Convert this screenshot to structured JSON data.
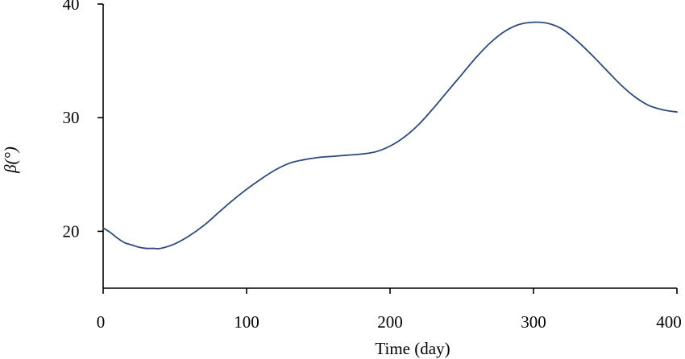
{
  "chart_data": {
    "type": "line",
    "title": "",
    "xlabel": "Time (day)",
    "ylabel": "β(°)",
    "xlim": [
      0,
      400
    ],
    "ylim": [
      15,
      40
    ],
    "xticks": [
      0,
      100,
      200,
      300,
      400
    ],
    "yticks": [
      20,
      30,
      40
    ],
    "grid": false,
    "line_color": "#2b4a7e",
    "series": [
      {
        "x": [
          0,
          5,
          10,
          15,
          20,
          25,
          30,
          35,
          40,
          50,
          60,
          70,
          80,
          90,
          100,
          110,
          120,
          130,
          140,
          150,
          160,
          170,
          180,
          190,
          200,
          210,
          220,
          230,
          240,
          250,
          260,
          270,
          280,
          290,
          300,
          310,
          320,
          330,
          340,
          350,
          360,
          370,
          380,
          390,
          400
        ],
        "y": [
          20.3,
          19.9,
          19.4,
          19.0,
          18.8,
          18.6,
          18.5,
          18.5,
          18.5,
          18.9,
          19.6,
          20.5,
          21.6,
          22.7,
          23.7,
          24.6,
          25.4,
          26.0,
          26.3,
          26.5,
          26.6,
          26.7,
          26.8,
          27.0,
          27.5,
          28.3,
          29.4,
          30.8,
          32.3,
          33.8,
          35.3,
          36.6,
          37.6,
          38.2,
          38.4,
          38.3,
          37.8,
          36.8,
          35.6,
          34.3,
          33.0,
          31.9,
          31.1,
          30.7,
          30.5
        ]
      }
    ]
  }
}
